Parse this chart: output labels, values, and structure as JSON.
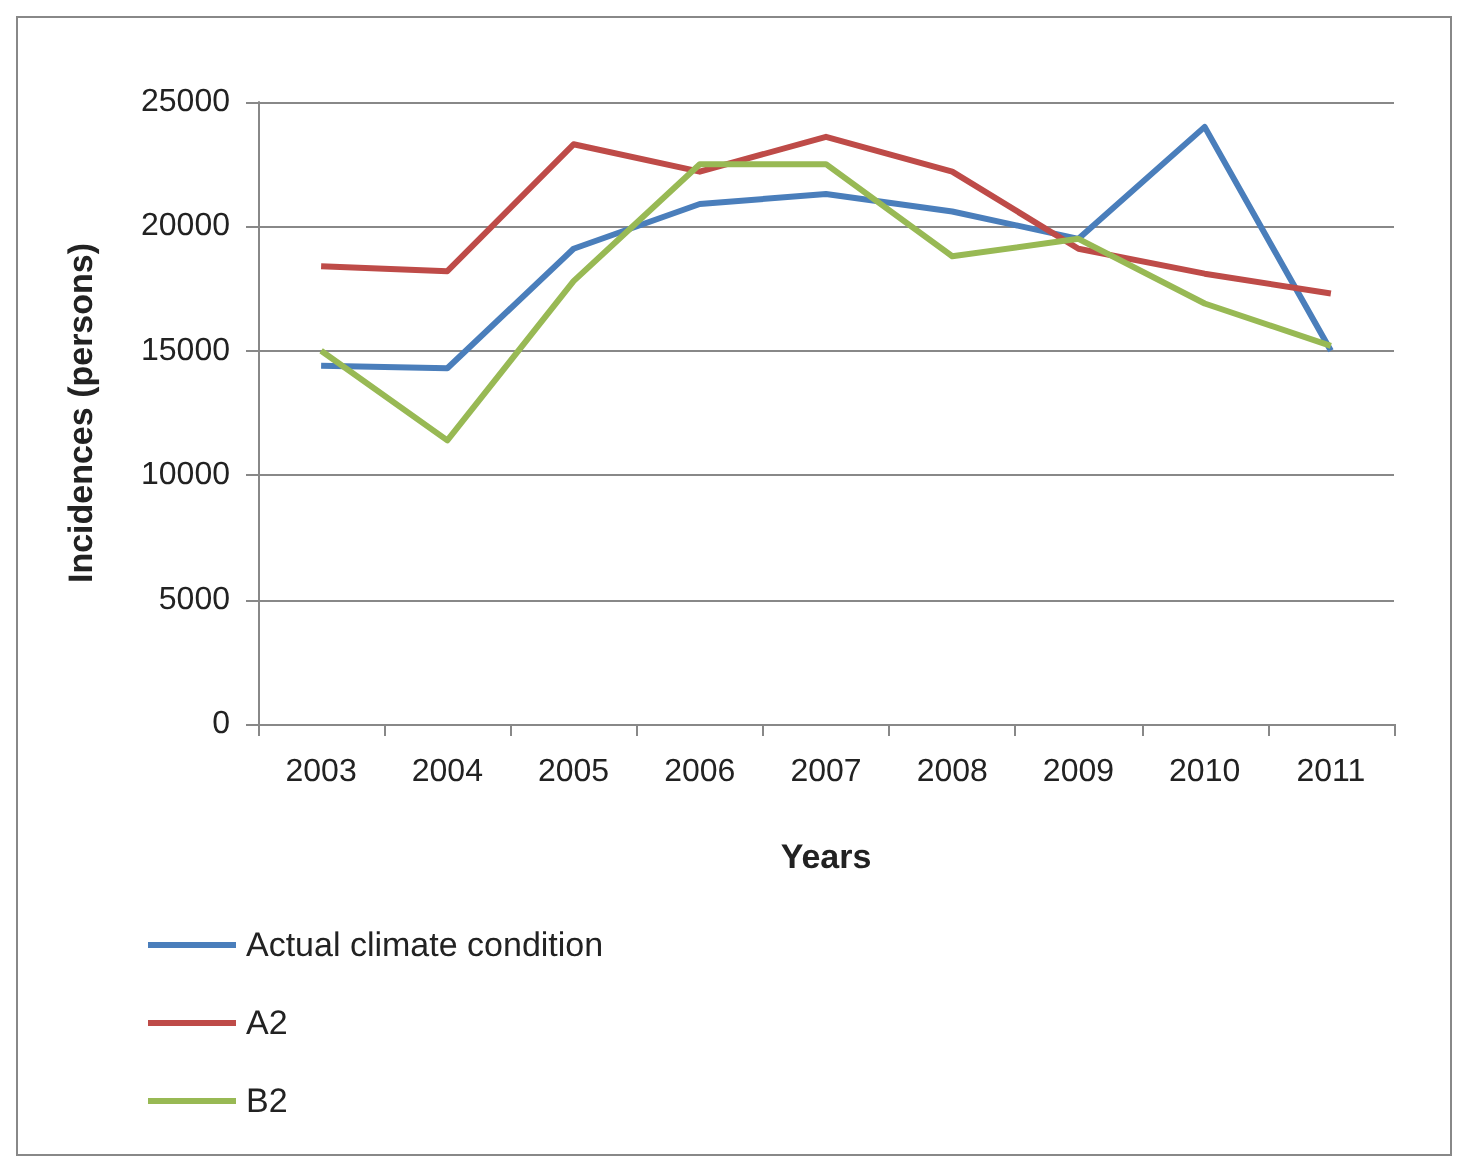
{
  "chart_data": {
    "type": "line",
    "xlabel": "Years",
    "ylabel": "Incidences (persons)",
    "categories": [
      "2003",
      "2004",
      "2005",
      "2006",
      "2007",
      "2008",
      "2009",
      "2010",
      "2011"
    ],
    "series": [
      {
        "name": "Actual climate condition",
        "color": "#4a7ebb",
        "values": [
          14400,
          14300,
          19100,
          20900,
          21300,
          20600,
          19500,
          24000,
          15000
        ]
      },
      {
        "name": "A2",
        "color": "#be4b48",
        "values": [
          18400,
          18200,
          23300,
          22200,
          23600,
          22200,
          19100,
          18100,
          17300
        ]
      },
      {
        "name": "B2",
        "color": "#98b954",
        "values": [
          15000,
          11400,
          17800,
          22500,
          22500,
          18800,
          19500,
          16900,
          15200
        ]
      }
    ],
    "ylim": [
      0,
      25000
    ],
    "yticks": [
      0,
      5000,
      10000,
      15000,
      20000,
      25000
    ],
    "grid": "y",
    "legend": "bottom left",
    "marker": "none",
    "line_style": "solid"
  }
}
